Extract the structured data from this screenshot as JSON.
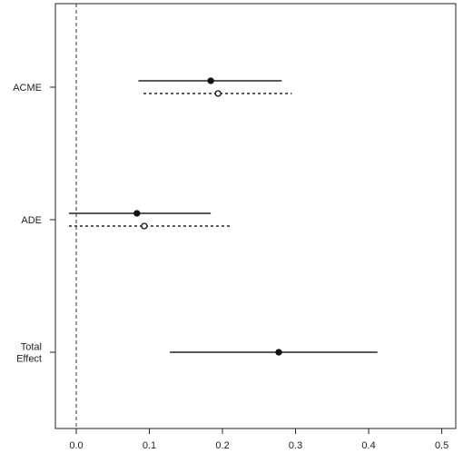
{
  "chart_data": {
    "type": "forest",
    "x_axis": {
      "range": [
        -0.03,
        0.5
      ],
      "ticks": [
        0.0,
        0.1,
        0.2,
        0.3,
        0.4,
        0.5
      ],
      "tick_labels": [
        "0.0",
        "0.1",
        "0.2",
        "0.3",
        "0.4",
        "0.5"
      ]
    },
    "reference_line": {
      "x": 0,
      "style": "dashed"
    },
    "categories": [
      {
        "label_lines": [
          "ACME"
        ],
        "estimates": [
          {
            "style": "solid",
            "marker": "filled",
            "estimate": 0.184,
            "lower": 0.085,
            "upper": 0.281
          },
          {
            "style": "dotted",
            "marker": "open",
            "estimate": 0.194,
            "lower": 0.092,
            "upper": 0.295
          }
        ]
      },
      {
        "label_lines": [
          "ADE"
        ],
        "estimates": [
          {
            "style": "solid",
            "marker": "filled",
            "estimate": 0.083,
            "lower": -0.01,
            "upper": 0.184
          },
          {
            "style": "dotted",
            "marker": "open",
            "estimate": 0.093,
            "lower": -0.01,
            "upper": 0.212
          }
        ]
      },
      {
        "label_lines": [
          "Total",
          "Effect"
        ],
        "estimates": [
          {
            "style": "solid",
            "marker": "filled",
            "estimate": 0.277,
            "lower": 0.128,
            "upper": 0.412
          }
        ]
      }
    ]
  }
}
